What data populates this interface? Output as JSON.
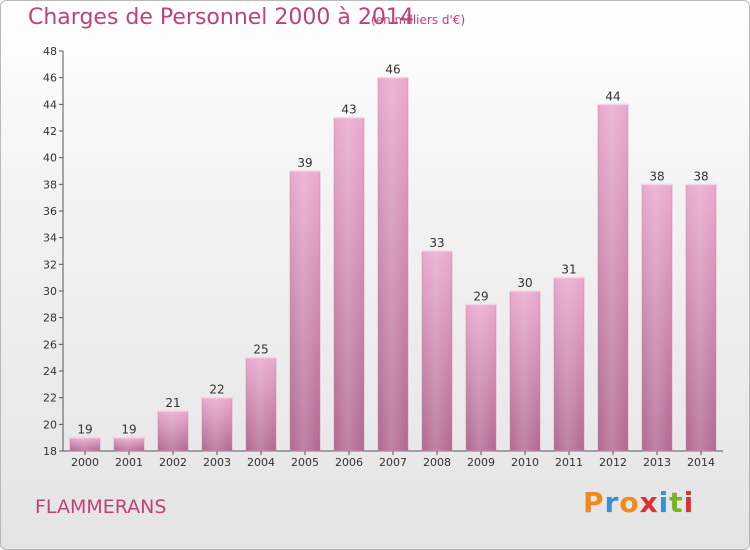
{
  "header": {
    "title": "Charges de Personnel 2000 à 2014",
    "subtitle": "(en milliers d'€)"
  },
  "footer": {
    "location": "FLAMMERANS",
    "logo": "Proxiti"
  },
  "colors": {
    "title": "#c0407a",
    "bar_top": "#e9a8cd",
    "bar_bottom": "#b06890",
    "logo_letters": [
      "#f08a1c",
      "#3a8fd6",
      "#f08a1c",
      "#e03030",
      "#3a8fd6",
      "#7ab51d",
      "#e03030"
    ]
  },
  "chart_data": {
    "type": "bar",
    "title": "Charges de Personnel 2000 à 2014",
    "subtitle": "(en milliers d'€)",
    "categories": [
      "2000",
      "2001",
      "2002",
      "2003",
      "2004",
      "2005",
      "2006",
      "2007",
      "2008",
      "2009",
      "2010",
      "2011",
      "2012",
      "2013",
      "2014"
    ],
    "values": [
      19,
      19,
      21,
      22,
      25,
      39,
      43,
      46,
      33,
      29,
      30,
      31,
      44,
      38,
      38
    ],
    "ylim": [
      18,
      48
    ],
    "yticks": [
      18,
      20,
      22,
      24,
      26,
      28,
      30,
      32,
      34,
      36,
      38,
      40,
      42,
      44,
      46,
      48
    ],
    "grid": false,
    "data_labels": true,
    "xlabel": "",
    "ylabel": ""
  }
}
